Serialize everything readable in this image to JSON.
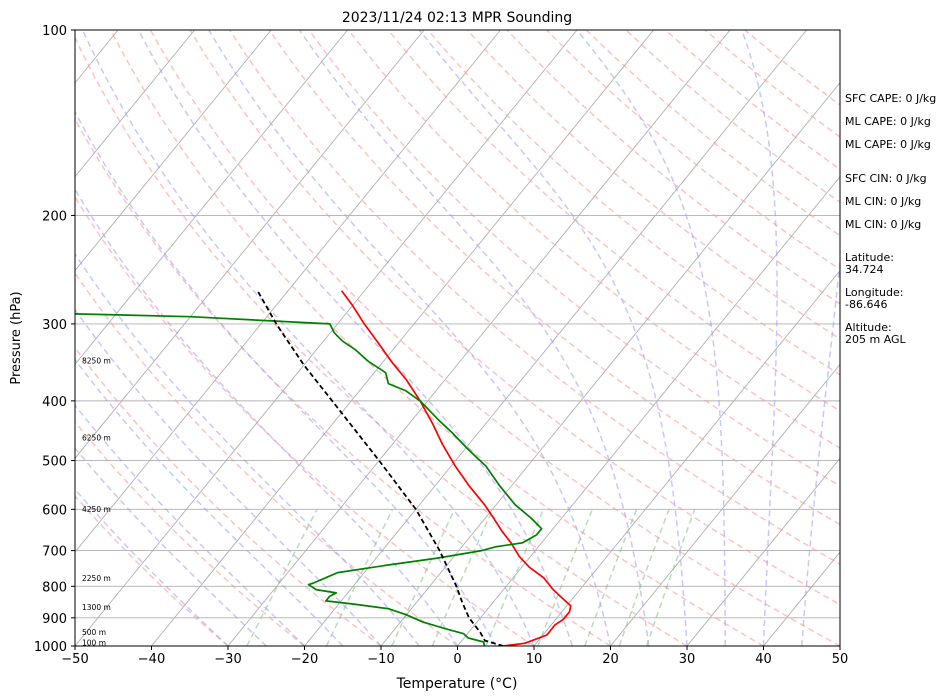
{
  "chart_data": {
    "type": "line",
    "chart_kind": "skew-T log-P sounding",
    "title": "2023/11/24 02:13 MPR Sounding",
    "xlabel": "Temperature (°C)",
    "ylabel": "Pressure (hPa)",
    "xlim": [
      -50,
      50
    ],
    "ylim": [
      1000,
      100
    ],
    "y_scale": "log",
    "grid": true,
    "x_ticks": [
      -50,
      -40,
      -30,
      -20,
      -10,
      0,
      10,
      20,
      30,
      40,
      50
    ],
    "y_ticks": [
      1000,
      900,
      800,
      700,
      600,
      500,
      400,
      300,
      200,
      100
    ],
    "height_labels": [
      {
        "text": "100 m",
        "p": 990
      },
      {
        "text": "500 m",
        "p": 952
      },
      {
        "text": "1300 m",
        "p": 867
      },
      {
        "text": "2250 m",
        "p": 778
      },
      {
        "text": "4250 m",
        "p": 601
      },
      {
        "text": "6250 m",
        "p": 460
      },
      {
        "text": "8250 m",
        "p": 345
      }
    ],
    "series": [
      {
        "color": "#ff0000",
        "points": [
          {
            "p": 1000,
            "t": 6.0
          },
          {
            "p": 990,
            "t": 8.5
          },
          {
            "p": 975,
            "t": 9.5
          },
          {
            "p": 960,
            "t": 10.5
          },
          {
            "p": 945,
            "t": 10.5
          },
          {
            "p": 925,
            "t": 10.5
          },
          {
            "p": 905,
            "t": 11.0
          },
          {
            "p": 880,
            "t": 11.0
          },
          {
            "p": 860,
            "t": 10.5
          },
          {
            "p": 835,
            "t": 8.5
          },
          {
            "p": 810,
            "t": 6.5
          },
          {
            "p": 775,
            "t": 4.0
          },
          {
            "p": 745,
            "t": 1.0
          },
          {
            "p": 715,
            "t": -1.5
          },
          {
            "p": 680,
            "t": -4.0
          },
          {
            "p": 650,
            "t": -6.5
          },
          {
            "p": 625,
            "t": -8.5
          },
          {
            "p": 590,
            "t": -11.5
          },
          {
            "p": 550,
            "t": -15.5
          },
          {
            "p": 510,
            "t": -19.5
          },
          {
            "p": 470,
            "t": -23.5
          },
          {
            "p": 435,
            "t": -27.0
          },
          {
            "p": 400,
            "t": -31.0
          },
          {
            "p": 370,
            "t": -35.0
          },
          {
            "p": 345,
            "t": -39.0
          },
          {
            "p": 320,
            "t": -43.0
          },
          {
            "p": 300,
            "t": -46.5
          },
          {
            "p": 280,
            "t": -50.0
          },
          {
            "p": 265,
            "t": -53.0
          }
        ]
      },
      {
        "color": "#008000",
        "points": [
          {
            "p": 1000,
            "t": 3.5
          },
          {
            "p": 985,
            "t": 3.0
          },
          {
            "p": 970,
            "t": 0.5
          },
          {
            "p": 955,
            "t": -0.5
          },
          {
            "p": 940,
            "t": -3.0
          },
          {
            "p": 915,
            "t": -7.0
          },
          {
            "p": 890,
            "t": -10.0
          },
          {
            "p": 870,
            "t": -13.0
          },
          {
            "p": 855,
            "t": -18.0
          },
          {
            "p": 845,
            "t": -22.0
          },
          {
            "p": 830,
            "t": -22.0
          },
          {
            "p": 820,
            "t": -21.5
          },
          {
            "p": 810,
            "t": -24.5
          },
          {
            "p": 795,
            "t": -26.0
          },
          {
            "p": 790,
            "t": -25.5
          },
          {
            "p": 775,
            "t": -24.5
          },
          {
            "p": 760,
            "t": -23.5
          },
          {
            "p": 740,
            "t": -18.0
          },
          {
            "p": 720,
            "t": -12.0
          },
          {
            "p": 700,
            "t": -7.0
          },
          {
            "p": 690,
            "t": -5.5
          },
          {
            "p": 680,
            "t": -2.5
          },
          {
            "p": 670,
            "t": -2.0
          },
          {
            "p": 660,
            "t": -1.5
          },
          {
            "p": 645,
            "t": -1.5
          },
          {
            "p": 620,
            "t": -4.0
          },
          {
            "p": 590,
            "t": -7.5
          },
          {
            "p": 550,
            "t": -11.5
          },
          {
            "p": 510,
            "t": -15.5
          },
          {
            "p": 480,
            "t": -19.5
          },
          {
            "p": 450,
            "t": -23.5
          },
          {
            "p": 430,
            "t": -26.5
          },
          {
            "p": 400,
            "t": -31.0
          },
          {
            "p": 385,
            "t": -34.0
          },
          {
            "p": 375,
            "t": -37.0
          },
          {
            "p": 360,
            "t": -38.5
          },
          {
            "p": 345,
            "t": -42.0
          },
          {
            "p": 330,
            "t": -45.0
          },
          {
            "p": 320,
            "t": -47.5
          },
          {
            "p": 310,
            "t": -49.5
          },
          {
            "p": 300,
            "t": -51.0
          },
          {
            "p": 292,
            "t": -70.0
          },
          {
            "p": 288,
            "t": -90.0
          }
        ]
      },
      {
        "color": "#000000",
        "dashed": true,
        "points": [
          {
            "p": 1000,
            "t": 6.0
          },
          {
            "p": 980,
            "t": 3.0
          },
          {
            "p": 950,
            "t": 1.5
          },
          {
            "p": 900,
            "t": -1.5
          },
          {
            "p": 850,
            "t": -4.0
          },
          {
            "p": 800,
            "t": -6.5
          },
          {
            "p": 700,
            "t": -12.5
          },
          {
            "p": 600,
            "t": -20.0
          },
          {
            "p": 500,
            "t": -30.0
          },
          {
            "p": 400,
            "t": -42.5
          },
          {
            "p": 350,
            "t": -50.0
          },
          {
            "p": 300,
            "t": -58.0
          },
          {
            "p": 265,
            "t": -64.0
          }
        ]
      }
    ],
    "background_lines": {
      "isotherm_color": "#b0b0b0",
      "dry_adiabat_color": "#ff9999",
      "moist_adiabat_color": "#9999ff",
      "mixing_ratio_color": "#80c080"
    }
  },
  "side_info": [
    "SFC CAPE: 0 J/kg",
    "ML CAPE: 0 J/kg",
    "ML CAPE: 0 J/kg",
    "SFC CIN: 0 J/kg",
    "ML CIN: 0 J/kg",
    "ML CIN: 0 J/kg",
    "Latitude:\n34.724",
    "Longitude:\n-86.646",
    "Altitude:\n205 m AGL"
  ]
}
